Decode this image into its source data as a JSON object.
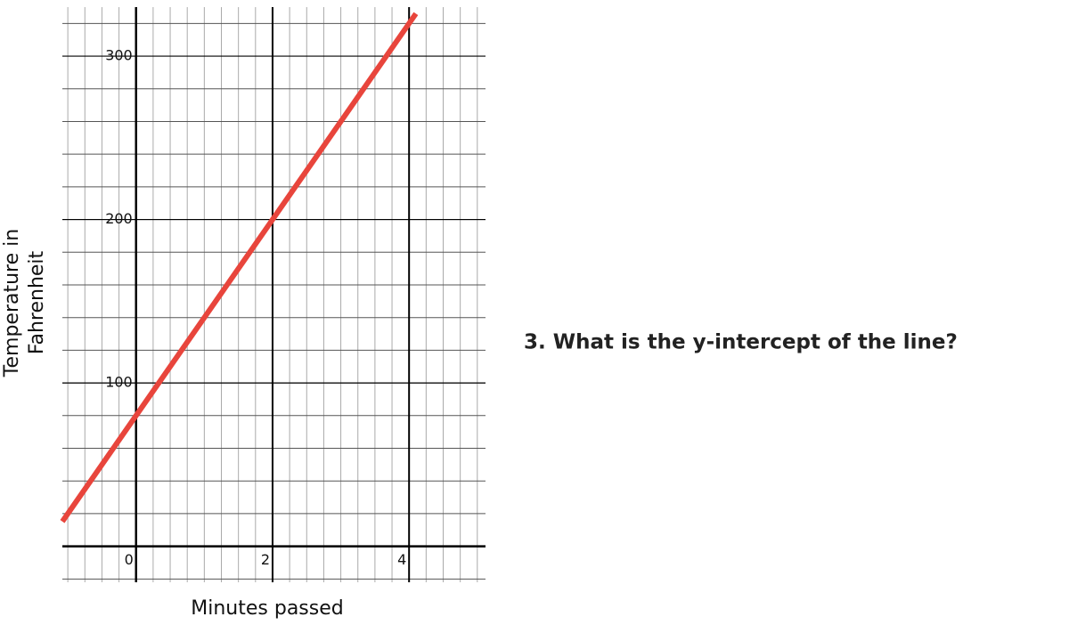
{
  "chart_data": {
    "type": "line",
    "x_label": "Minutes passed",
    "y_label": [
      "Temperature in",
      "Fahrenheit"
    ],
    "annotation": "3. What is the y-intercept of the line?",
    "xlim": [
      -1.08,
      5.12
    ],
    "ylim": [
      -22,
      330
    ],
    "xticks": [
      0,
      2,
      4
    ],
    "yticks": [
      100,
      200,
      300
    ],
    "grid": true,
    "minor_grid": true,
    "series": [
      {
        "color": "#e8453c",
        "x": [
          -1.08,
          4.1
        ],
        "values": [
          15.2,
          326
        ]
      }
    ]
  }
}
